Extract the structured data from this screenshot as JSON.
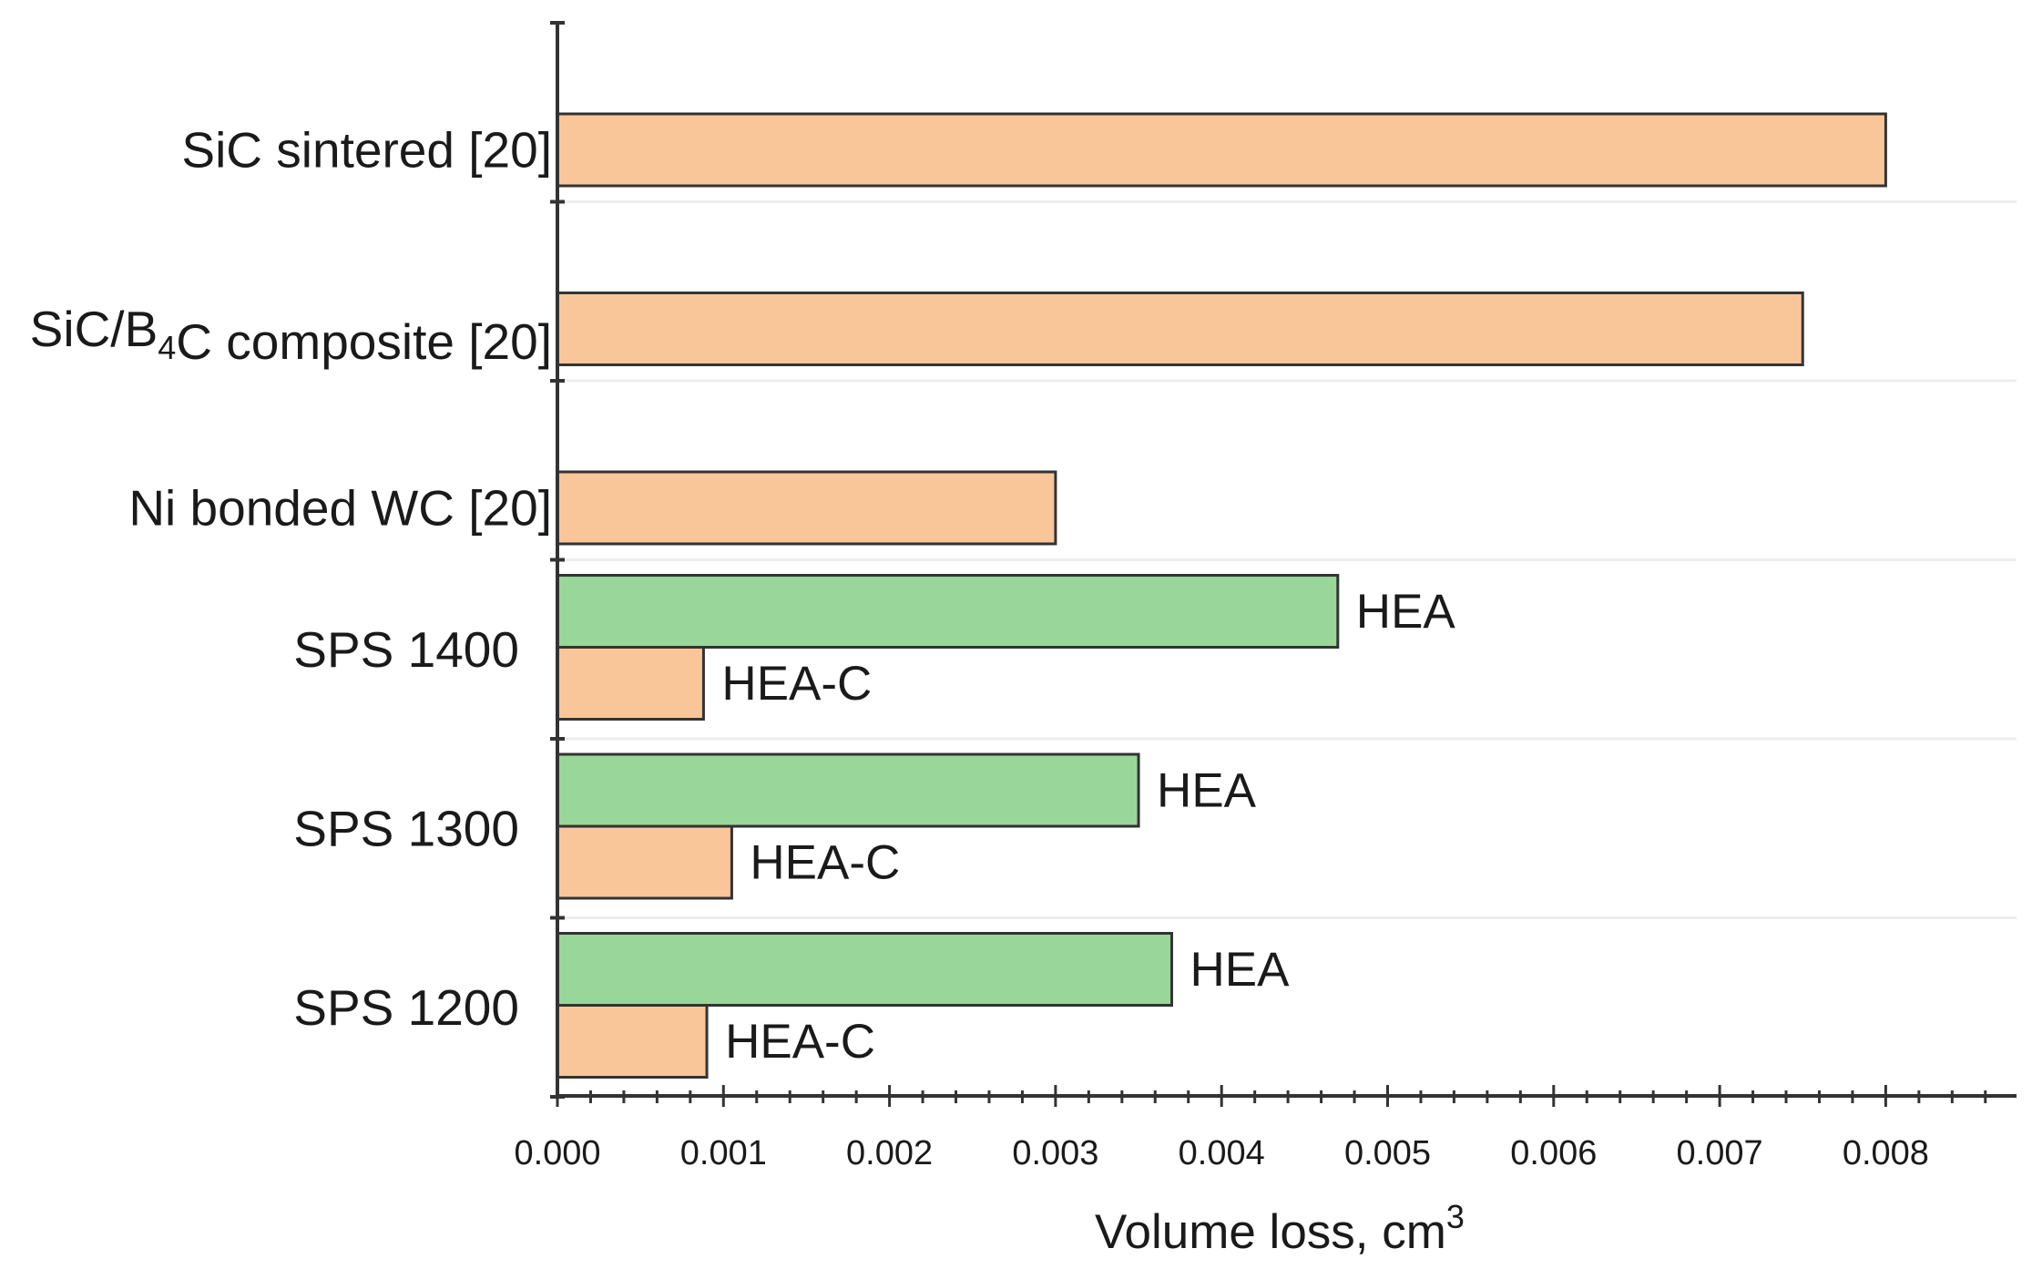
{
  "chart_data": {
    "type": "bar",
    "orientation": "horizontal",
    "xlabel": "Volume loss, cm",
    "xlabel_superscript": "3",
    "xlim": [
      0,
      0.0088
    ],
    "x_ticks": [
      "0.000",
      "0.001",
      "0.002",
      "0.003",
      "0.004",
      "0.005",
      "0.006",
      "0.007",
      "0.008"
    ],
    "x_tick_values": [
      0,
      0.001,
      0.002,
      0.003,
      0.004,
      0.005,
      0.006,
      0.007,
      0.008
    ],
    "grid": "horizontal faint lines between categories",
    "colors": {
      "HEA": "#99d699",
      "HEA-C": "#f9c69a",
      "reference": "#f9c69a",
      "edge": "#333333"
    },
    "categories": [
      {
        "label_parts": [
          {
            "t": "SiC sintered [20]"
          }
        ],
        "bars": [
          {
            "series": "reference",
            "value": 0.008,
            "label": ""
          }
        ]
      },
      {
        "label_parts": [
          {
            "t": "SiC/B"
          },
          {
            "t": "4",
            "sub": true
          },
          {
            "t": "C composite [20]"
          }
        ],
        "bars": [
          {
            "series": "reference",
            "value": 0.0075,
            "label": ""
          }
        ]
      },
      {
        "label_parts": [
          {
            "t": "Ni bonded WC [20]"
          }
        ],
        "bars": [
          {
            "series": "reference",
            "value": 0.003,
            "label": ""
          }
        ]
      },
      {
        "label_parts": [
          {
            "t": "SPS 1400"
          }
        ],
        "bars": [
          {
            "series": "HEA",
            "value": 0.0047,
            "label": "HEA"
          },
          {
            "series": "HEA-C",
            "value": 0.00088,
            "label": "HEA-C"
          }
        ]
      },
      {
        "label_parts": [
          {
            "t": "SPS 1300"
          }
        ],
        "bars": [
          {
            "series": "HEA",
            "value": 0.0035,
            "label": "HEA"
          },
          {
            "series": "HEA-C",
            "value": 0.00105,
            "label": "HEA-C"
          }
        ]
      },
      {
        "label_parts": [
          {
            "t": "SPS 1200"
          }
        ],
        "bars": [
          {
            "series": "HEA",
            "value": 0.0037,
            "label": "HEA"
          },
          {
            "series": "HEA-C",
            "value": 0.0009,
            "label": "HEA-C"
          }
        ]
      }
    ]
  }
}
